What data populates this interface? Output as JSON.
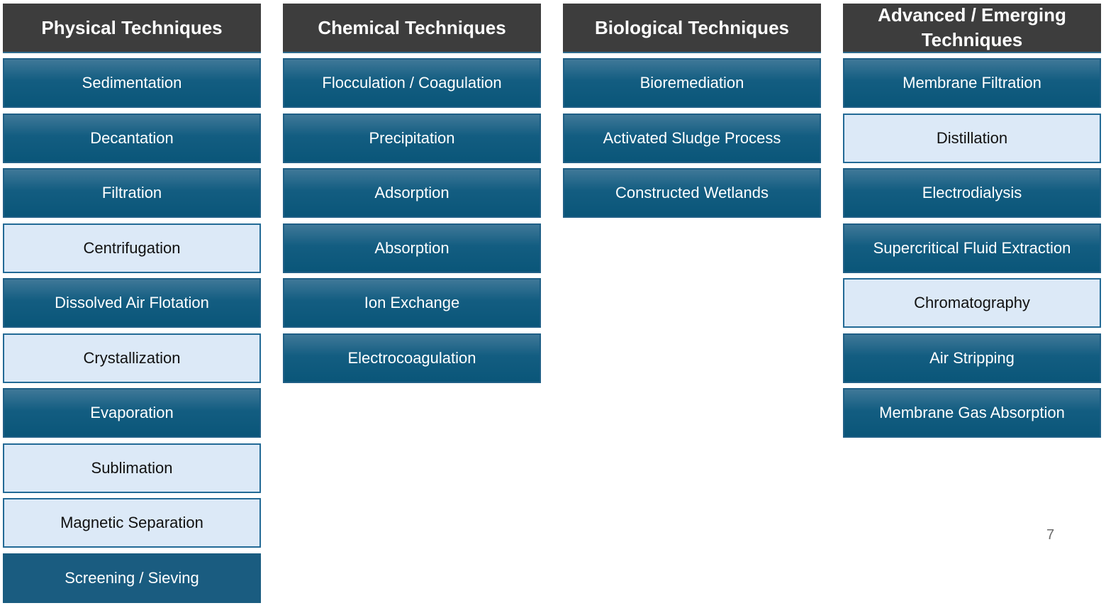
{
  "columns": [
    {
      "title": "Physical Techniques",
      "items": [
        {
          "label": "Sedimentation",
          "style": "dark"
        },
        {
          "label": "Decantation",
          "style": "dark"
        },
        {
          "label": "Filtration",
          "style": "dark"
        },
        {
          "label": "Centrifugation",
          "style": "light"
        },
        {
          "label": "Dissolved Air Flotation",
          "style": "dark"
        },
        {
          "label": "Crystallization",
          "style": "light"
        },
        {
          "label": "Evaporation",
          "style": "dark"
        },
        {
          "label": "Sublimation",
          "style": "light"
        },
        {
          "label": "Magnetic Separation",
          "style": "light"
        },
        {
          "label": "Screening / Sieving",
          "style": "flat"
        }
      ]
    },
    {
      "title": "Chemical Techniques",
      "items": [
        {
          "label": "Flocculation / Coagulation",
          "style": "dark"
        },
        {
          "label": "Precipitation",
          "style": "dark"
        },
        {
          "label": "Adsorption",
          "style": "dark"
        },
        {
          "label": "Absorption",
          "style": "dark"
        },
        {
          "label": "Ion Exchange",
          "style": "dark"
        },
        {
          "label": "Electrocoagulation",
          "style": "dark"
        }
      ]
    },
    {
      "title": "Biological Techniques",
      "items": [
        {
          "label": "Bioremediation",
          "style": "dark"
        },
        {
          "label": "Activated Sludge Process",
          "style": "dark"
        },
        {
          "label": "Constructed Wetlands",
          "style": "dark"
        }
      ]
    },
    {
      "title": "Advanced / Emerging Techniques",
      "items": [
        {
          "label": "Membrane Filtration",
          "style": "dark"
        },
        {
          "label": "Distillation",
          "style": "light"
        },
        {
          "label": "Electrodialysis",
          "style": "dark"
        },
        {
          "label": "Supercritical Fluid Extraction",
          "style": "dark"
        },
        {
          "label": "Chromatography",
          "style": "light"
        },
        {
          "label": "Air Stripping",
          "style": "dark"
        },
        {
          "label": "Membrane Gas Absorption",
          "style": "dark"
        }
      ]
    }
  ],
  "page_number": "7",
  "colors": {
    "header_bg": "#3d3d3d",
    "box_dark": "#135d81",
    "box_light": "#dce9f7",
    "box_border": "#1f5f86"
  }
}
